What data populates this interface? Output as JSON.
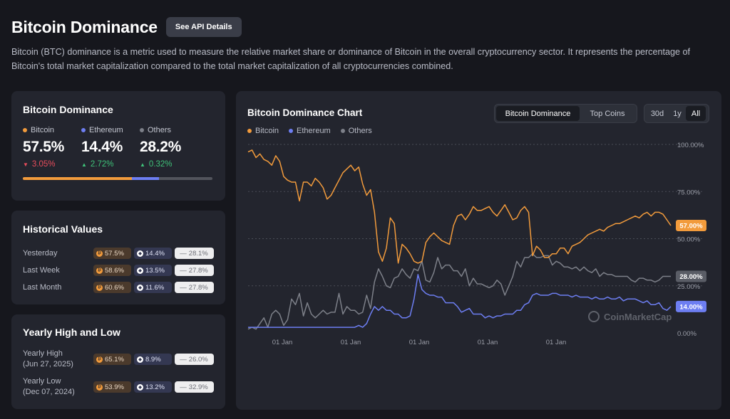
{
  "header": {
    "title": "Bitcoin Dominance",
    "api_button": "See API Details",
    "description": "Bitcoin (BTC) dominance is a metric used to measure the relative market share or dominance of Bitcoin in the overall cryptocurrency sector. It represents the percentage of Bitcoin's total market capitalization compared to the total market capitalization of all cryptocurrencies combined."
  },
  "colors": {
    "bitcoin": "#f29b3c",
    "ethereum": "#6d7ef2",
    "others": "#7d8089",
    "down": "#ea4d5c",
    "up": "#3fc279"
  },
  "dominance": {
    "title": "Bitcoin Dominance",
    "items": [
      {
        "name": "Bitcoin",
        "value": "57.5%",
        "change": "3.05%",
        "direction": "down",
        "share": 57.5
      },
      {
        "name": "Ethereum",
        "value": "14.4%",
        "change": "2.72%",
        "direction": "up",
        "share": 14.4
      },
      {
        "name": "Others",
        "value": "28.2%",
        "change": "0.32%",
        "direction": "up",
        "share": 28.2
      }
    ]
  },
  "historical": {
    "title": "Historical Values",
    "rows": [
      {
        "label": "Yesterday",
        "btc": "57.5%",
        "eth": "14.4%",
        "others": "28.1%"
      },
      {
        "label": "Last Week",
        "btc": "58.6%",
        "eth": "13.5%",
        "others": "27.8%"
      },
      {
        "label": "Last Month",
        "btc": "60.6%",
        "eth": "11.6%",
        "others": "27.8%"
      }
    ]
  },
  "yearly": {
    "title": "Yearly High and Low",
    "rows": [
      {
        "label": "Yearly High",
        "date": "(Jun 27, 2025)",
        "btc": "65.1%",
        "eth": "8.9%",
        "others": "26.0%"
      },
      {
        "label": "Yearly Low",
        "date": "(Dec 07, 2024)",
        "btc": "53.9%",
        "eth": "13.2%",
        "others": "32.9%"
      }
    ]
  },
  "chart": {
    "title": "Bitcoin Dominance Chart",
    "tabs": [
      "Bitcoin Dominance",
      "Top Coins"
    ],
    "active_tab": "Bitcoin Dominance",
    "ranges": [
      "30d",
      "1y",
      "All"
    ],
    "active_range": "All",
    "watermark": "CoinMarketCap"
  },
  "chart_data": {
    "type": "line",
    "y_ticks": [
      "100.00%",
      "75.00%",
      "50.00%",
      "25.00%",
      "0.00%"
    ],
    "ylim": [
      0,
      100
    ],
    "x_ticks": [
      "01 Jan",
      "01 Jan",
      "01 Jan",
      "01 Jan",
      "01 Jan"
    ],
    "grid": true,
    "legend_position": "top-left",
    "series": [
      {
        "name": "Bitcoin",
        "end_label": "57.00%",
        "values": [
          96,
          97,
          93,
          95,
          92,
          91,
          89,
          94,
          91,
          83,
          81,
          80,
          80,
          70,
          80,
          80,
          78,
          82,
          80,
          77,
          71,
          73,
          77,
          81,
          85,
          87,
          89,
          86,
          88,
          79,
          73,
          76,
          64,
          43,
          38,
          45,
          61,
          58,
          37,
          47,
          45,
          42,
          38,
          37,
          38,
          48,
          51,
          53,
          51,
          49,
          48,
          47,
          57,
          62,
          63,
          60,
          63,
          67,
          65,
          65,
          66,
          67,
          64,
          62,
          65,
          68,
          64,
          60,
          61,
          65,
          67,
          64,
          41,
          46,
          44,
          40,
          40,
          42,
          42,
          45,
          45,
          42,
          46,
          47,
          48,
          50,
          52,
          53,
          54,
          55,
          54,
          56,
          57,
          58,
          58,
          59,
          60,
          61,
          62,
          61,
          63,
          64,
          62,
          64,
          64,
          63,
          60,
          57
        ]
      },
      {
        "name": "Ethereum",
        "end_label": "14.00%",
        "values": [
          3,
          3,
          3,
          3,
          3,
          3,
          3,
          3,
          3,
          3,
          3,
          3,
          3,
          3,
          3,
          3,
          3,
          3,
          3,
          3,
          3,
          3,
          3,
          3,
          3,
          3,
          3,
          3,
          4,
          3,
          5,
          10,
          14,
          12,
          14,
          12,
          12,
          10,
          10,
          8,
          8,
          9,
          18,
          31,
          23,
          21,
          20,
          20,
          19,
          19,
          16,
          16,
          16,
          14,
          11,
          12,
          13,
          10,
          10,
          10,
          8,
          9,
          8,
          9,
          9,
          10,
          10,
          10,
          12,
          12,
          15,
          16,
          20,
          21,
          20,
          20,
          20,
          21,
          21,
          20,
          20,
          20,
          19,
          20,
          19,
          19,
          19,
          18,
          19,
          18,
          18,
          19,
          18,
          18,
          19,
          17,
          18,
          18,
          18,
          17,
          16,
          17,
          15,
          15,
          16,
          13,
          12,
          14
        ]
      },
      {
        "name": "Others",
        "end_label": "28.00%",
        "values": [
          2,
          3,
          2,
          5,
          8,
          3,
          10,
          12,
          10,
          4,
          7,
          18,
          15,
          21,
          9,
          16,
          10,
          8,
          10,
          12,
          10,
          11,
          11,
          21,
          10,
          14,
          12,
          12,
          10,
          11,
          20,
          13,
          27,
          34,
          30,
          25,
          24,
          29,
          30,
          34,
          31,
          29,
          34,
          33,
          38,
          28,
          27,
          32,
          40,
          34,
          36,
          36,
          33,
          33,
          30,
          34,
          25,
          29,
          26,
          26,
          25,
          24,
          25,
          28,
          26,
          20,
          25,
          30,
          38,
          35,
          40,
          40,
          42,
          40,
          40,
          41,
          41,
          36,
          38,
          37,
          35,
          35,
          34,
          35,
          33,
          35,
          33,
          32,
          34,
          30,
          32,
          31,
          31,
          30,
          30,
          30,
          30,
          28,
          27,
          29,
          29,
          28,
          28,
          27,
          28,
          30,
          30,
          30
        ]
      }
    ]
  }
}
